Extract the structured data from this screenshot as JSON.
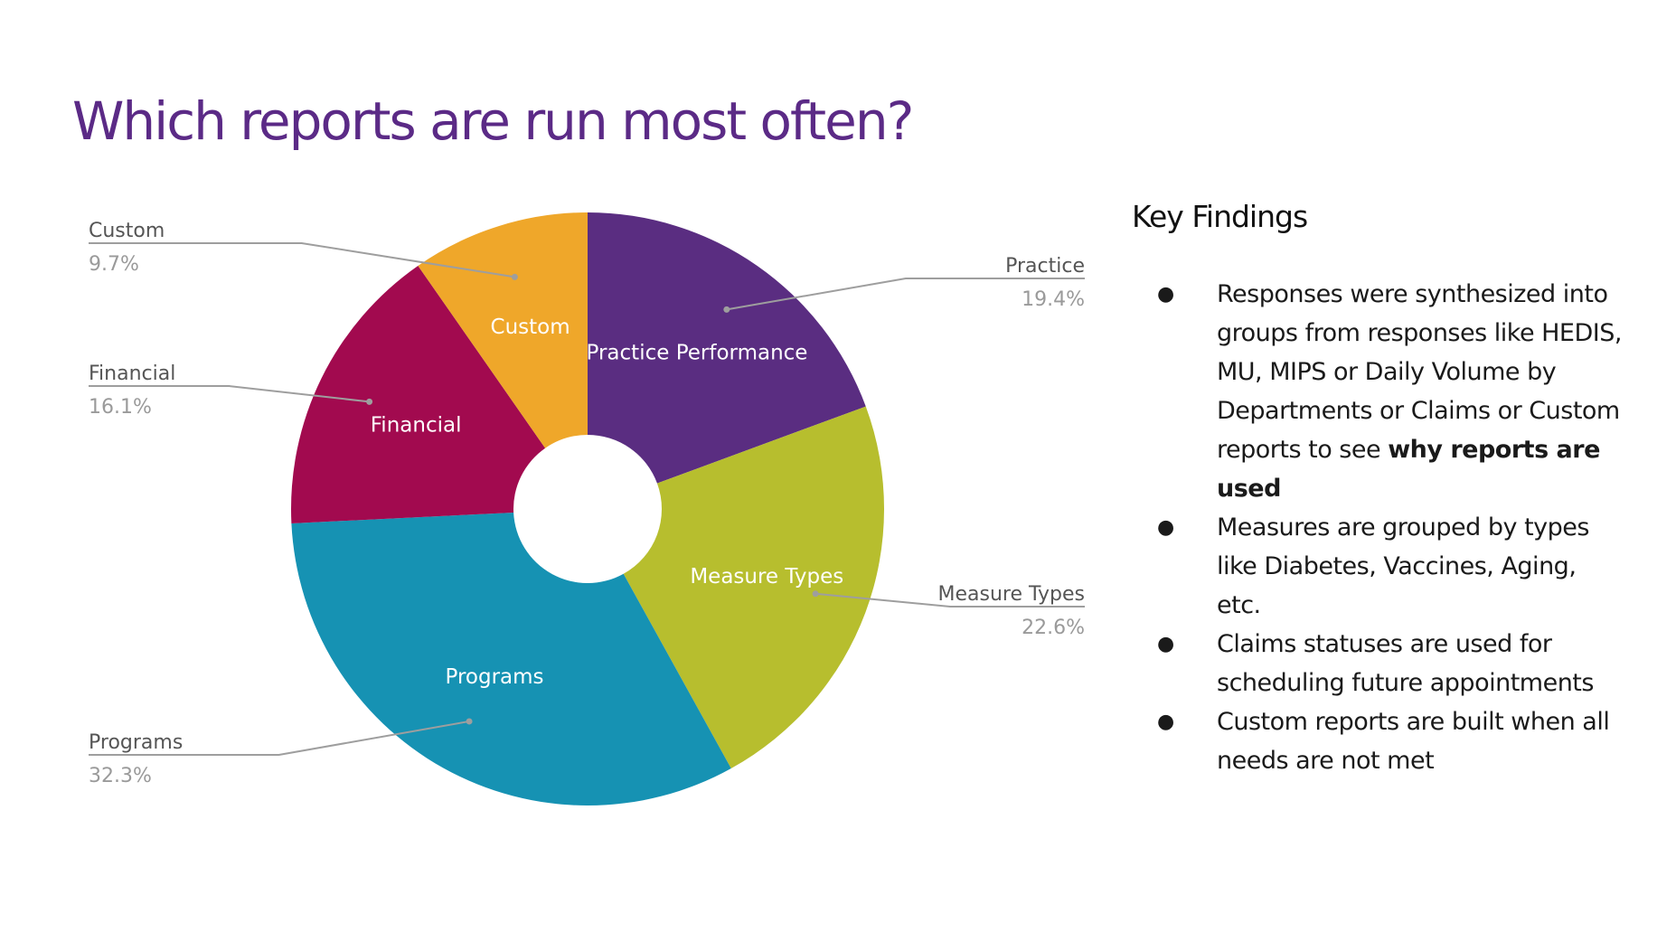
{
  "title": "Which reports are run most often?",
  "chart_data": {
    "type": "pie",
    "donut": true,
    "slices": [
      {
        "name": "Practice",
        "inner_label": "Practice Performance",
        "value": 19.4,
        "percent_label": "19.4%",
        "color": "#5a2d81"
      },
      {
        "name": "Measure Types",
        "inner_label": "Measure Types",
        "value": 22.6,
        "percent_label": "22.6%",
        "color": "#b7be2e"
      },
      {
        "name": "Programs",
        "inner_label": "Programs",
        "value": 32.3,
        "percent_label": "32.3%",
        "color": "#1692b3"
      },
      {
        "name": "Financial",
        "inner_label": "Financial",
        "value": 16.1,
        "percent_label": "16.1%",
        "color": "#a20a4f"
      },
      {
        "name": "Custom",
        "inner_label": "Custom",
        "value": 9.7,
        "percent_label": "9.7%",
        "color": "#efa72a"
      }
    ]
  },
  "findings": {
    "title": "Key Findings",
    "items": [
      {
        "text": "Responses were synthesized into groups from responses like HEDIS, MU, MIPS or Daily Volume by Departments or Claims or Custom reports to see ",
        "bold": "why reports are used"
      },
      {
        "text": "Measures are grouped by types like Diabetes, Vaccines, Aging, etc.",
        "bold": ""
      },
      {
        "text": "Claims statuses are used for scheduling future appointments",
        "bold": ""
      },
      {
        "text": "Custom reports are built when all needs are not met",
        "bold": ""
      }
    ]
  }
}
